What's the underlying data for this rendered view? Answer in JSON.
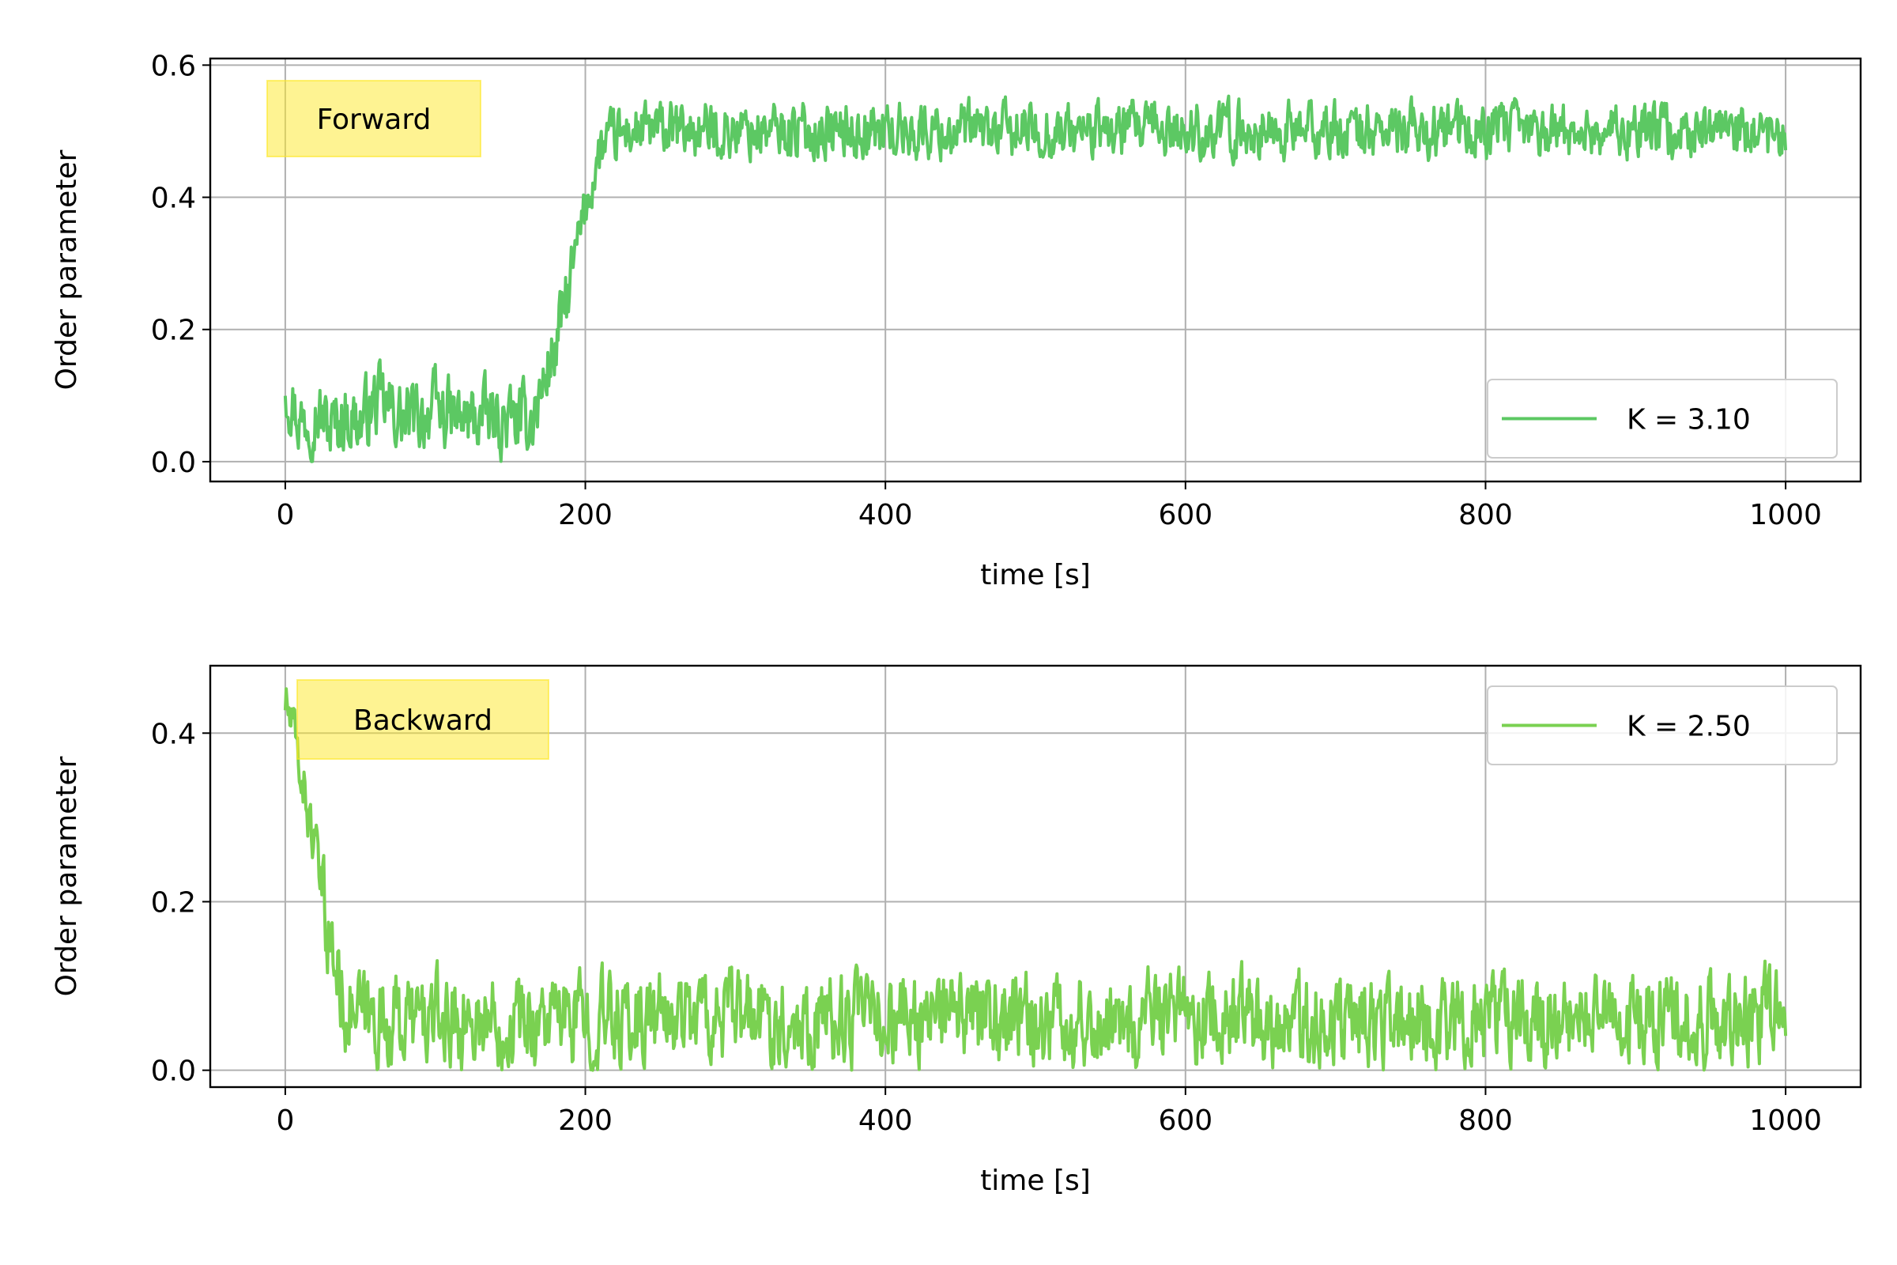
{
  "chart_data": [
    {
      "type": "line",
      "annotation": "Forward",
      "xlabel": "time [s]",
      "ylabel": "Order parameter",
      "xlim": [
        -50,
        1050
      ],
      "ylim": [
        -0.03,
        0.61
      ],
      "xticks": [
        0,
        200,
        400,
        600,
        800,
        1000
      ],
      "xtick_labels": [
        "0",
        "200",
        "400",
        "600",
        "800",
        "1000"
      ],
      "yticks": [
        0.0,
        0.2,
        0.4,
        0.6
      ],
      "ytick_labels": [
        "0.0",
        "0.2",
        "0.4",
        "0.6"
      ],
      "grid": true,
      "legend_position": "lower right",
      "series": [
        {
          "name": "K = 3.10",
          "color": "#5cc863",
          "x": [
            0,
            10,
            20,
            30,
            40,
            50,
            60,
            70,
            80,
            90,
            100,
            110,
            120,
            130,
            140,
            150,
            160,
            165,
            170,
            175,
            180,
            185,
            190,
            195,
            200,
            205,
            210,
            215,
            220,
            230,
            240,
            250,
            260,
            280,
            300,
            350,
            400,
            450,
            500,
            550,
            600,
            650,
            700,
            750,
            800,
            850,
            900,
            950,
            1000
          ],
          "y": [
            0.12,
            0.06,
            0.08,
            0.05,
            0.07,
            0.06,
            0.09,
            0.08,
            0.06,
            0.07,
            0.08,
            0.07,
            0.06,
            0.07,
            0.06,
            0.06,
            0.06,
            0.07,
            0.1,
            0.14,
            0.17,
            0.22,
            0.27,
            0.33,
            0.38,
            0.43,
            0.47,
            0.48,
            0.49,
            0.5,
            0.5,
            0.5,
            0.5,
            0.5,
            0.5,
            0.5,
            0.5,
            0.5,
            0.5,
            0.5,
            0.5,
            0.5,
            0.5,
            0.5,
            0.5,
            0.5,
            0.5,
            0.5,
            0.48
          ]
        }
      ]
    },
    {
      "type": "line",
      "annotation": "Backward",
      "xlabel": "time [s]",
      "ylabel": "Order parameter",
      "xlim": [
        -50,
        1050
      ],
      "ylim": [
        -0.02,
        0.48
      ],
      "xticks": [
        0,
        200,
        400,
        600,
        800,
        1000
      ],
      "xtick_labels": [
        "0",
        "200",
        "400",
        "600",
        "800",
        "1000"
      ],
      "yticks": [
        0.0,
        0.2,
        0.4
      ],
      "ytick_labels": [
        "0.0",
        "0.2",
        "0.4"
      ],
      "grid": true,
      "legend_position": "upper right",
      "series": [
        {
          "name": "K = 2.50",
          "color": "#7ad151",
          "x": [
            0,
            5,
            10,
            15,
            20,
            25,
            30,
            35,
            40,
            50,
            60,
            80,
            100,
            150,
            200,
            250,
            268,
            300,
            350,
            400,
            450,
            500,
            550,
            600,
            650,
            700,
            750,
            800,
            850,
            900,
            950,
            1000
          ],
          "y": [
            0.44,
            0.4,
            0.36,
            0.31,
            0.26,
            0.2,
            0.15,
            0.11,
            0.08,
            0.06,
            0.06,
            0.06,
            0.06,
            0.06,
            0.06,
            0.06,
            0.07,
            0.06,
            0.06,
            0.06,
            0.06,
            0.06,
            0.06,
            0.06,
            0.06,
            0.06,
            0.06,
            0.06,
            0.06,
            0.06,
            0.06,
            0.07
          ]
        }
      ]
    }
  ]
}
